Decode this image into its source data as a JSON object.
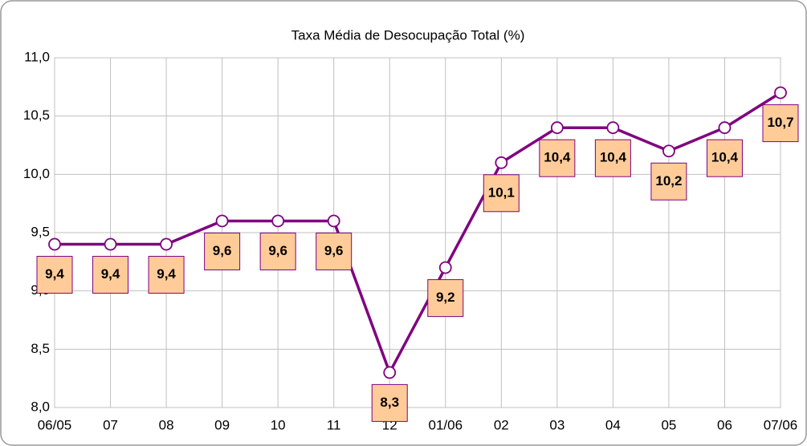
{
  "chart_data": {
    "type": "line",
    "title": "Taxa Média de Desocupação Total (%)",
    "categories": [
      "06/05",
      "07",
      "08",
      "09",
      "10",
      "11",
      "12",
      "01/06",
      "02",
      "03",
      "04",
      "05",
      "06",
      "07/06"
    ],
    "series": [
      {
        "color": "#800080",
        "values": [
          9.4,
          9.4,
          9.4,
          9.6,
          9.6,
          9.6,
          8.3,
          9.2,
          10.1,
          10.4,
          10.4,
          10.2,
          10.4,
          10.7
        ],
        "value_labels": [
          "9,4",
          "9,4",
          "9,4",
          "9,6",
          "9,6",
          "9,6",
          "8,3",
          "9,2",
          "10,1",
          "10,4",
          "10,4",
          "10,2",
          "10,4",
          "10,7"
        ]
      }
    ],
    "ylim": [
      8,
      11
    ],
    "yticks": [
      {
        "value": 8,
        "label": "8,0"
      },
      {
        "value": 8.5,
        "label": "8,5"
      },
      {
        "value": 9,
        "label": "9,0"
      },
      {
        "value": 9.5,
        "label": "9,5"
      },
      {
        "value": 10,
        "label": "10,0"
      },
      {
        "value": 10.5,
        "label": "10,5"
      },
      {
        "value": 11,
        "label": "11,0"
      }
    ],
    "grid": true
  }
}
